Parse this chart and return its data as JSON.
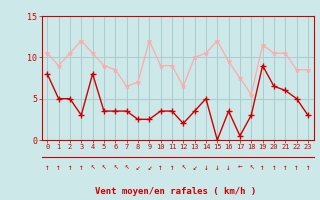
{
  "hours": [
    0,
    1,
    2,
    3,
    4,
    5,
    6,
    7,
    8,
    9,
    10,
    11,
    12,
    13,
    14,
    15,
    16,
    17,
    18,
    19,
    20,
    21,
    22,
    23
  ],
  "wind_mean": [
    8,
    5,
    5,
    3,
    8,
    3.5,
    3.5,
    3.5,
    2.5,
    2.5,
    3.5,
    3.5,
    2,
    3.5,
    5,
    0,
    3.5,
    0.5,
    3,
    9,
    6.5,
    6,
    5,
    3
  ],
  "wind_gust": [
    10.5,
    9,
    10.5,
    12,
    10.5,
    9,
    8.5,
    6.5,
    7,
    12,
    9,
    9,
    6.5,
    10,
    10.5,
    12,
    9.5,
    7.5,
    5.5,
    11.5,
    10.5,
    10.5,
    8.5,
    8.5
  ],
  "mean_color": "#cc0000",
  "gust_color": "#ffaaaa",
  "bg_color": "#cce8e8",
  "grid_color": "#aacccc",
  "axis_color": "#cc0000",
  "text_color": "#cc0000",
  "xlabel": "Vent moyen/en rafales ( km/h )",
  "ylim": [
    0,
    15
  ],
  "yticks": [
    0,
    5,
    10,
    15
  ],
  "arrow_chars": [
    "↑",
    "↑",
    "↑",
    "↑",
    "↖",
    "↖",
    "↖",
    "↖",
    "↙",
    "↙",
    "↑",
    "↑",
    "↖",
    "↙",
    "↓",
    "↓",
    "↓",
    "←",
    "↖",
    "↑",
    "↑",
    "↑",
    "↑",
    "↑"
  ]
}
